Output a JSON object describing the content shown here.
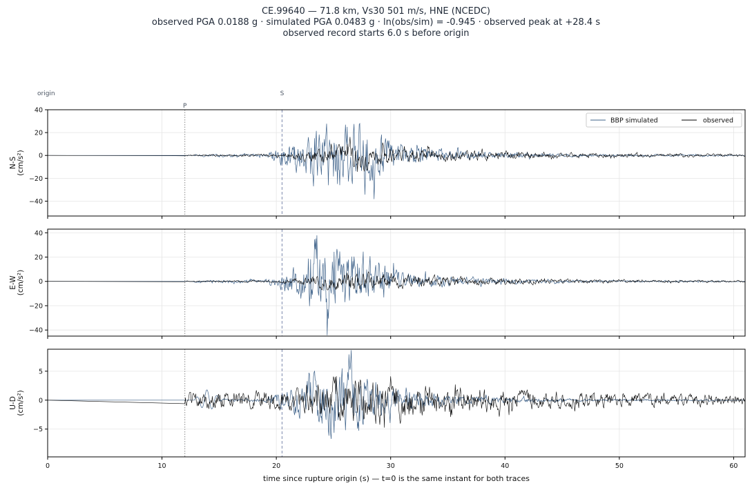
{
  "header": {
    "title_line1": "CE.99640  —  71.8 km, Vs30 501 m/s, HNE (NCEDC)",
    "title_line2": "observed PGA 0.0188 g   ·   simulated PGA 0.0483 g   ·   ln(obs/sim) = -0.945   ·   observed peak at +28.4 s",
    "title_line3": "observed record starts 6.0 s before origin"
  },
  "colors": {
    "simulated": "#3d6189",
    "observed": "#000000",
    "p_marker": "#888888",
    "s_marker": "#7b87ad",
    "grid": "#e5e5e5",
    "annotation_text": "#4b5563"
  },
  "chart_data": {
    "type": "line",
    "xlabel": "time since rupture origin (s)   —   t=0 is the same instant for both traces",
    "xlim": [
      0,
      61
    ],
    "xticks": [
      0,
      10,
      20,
      30,
      40,
      50,
      60
    ],
    "xtick_labels": [
      "0",
      "10",
      "20",
      "30",
      "40",
      "50",
      "60"
    ],
    "grid": true,
    "legend": {
      "placement": "upper-right",
      "entries": [
        "BBP simulated",
        "observed"
      ]
    },
    "markers": [
      {
        "label": "P",
        "t": 12.0,
        "style": "dotted"
      },
      {
        "label": "S",
        "t": 20.5,
        "style": "dashed"
      }
    ],
    "origin_label": "origin",
    "panels": [
      {
        "ylabel": "N-S\n(cm/s²)",
        "ylabel_component": "N-S",
        "ylabel_unit": "(cm/s²)",
        "ylim": [
          -53,
          40
        ],
        "yticks": [
          40,
          20,
          0,
          -20,
          -40
        ],
        "ytick_labels": [
          "40",
          "20",
          "0",
          "−20",
          "−40"
        ],
        "series": [
          {
            "name": "BBP simulated",
            "envelope_peak_t": 24.5,
            "peak_abs": 48,
            "onset_t": 12.8,
            "coda_end_t": 59.5
          },
          {
            "name": "observed",
            "envelope_peak_t": 27.5,
            "peak_abs": 18,
            "onset_t": 12.0,
            "coda_end_t": 61
          }
        ]
      },
      {
        "ylabel": "E-W\n(cm/s²)",
        "ylabel_component": "E-W",
        "ylabel_unit": "(cm/s²)",
        "ylim": [
          -45,
          43
        ],
        "yticks": [
          40,
          20,
          0,
          -20,
          -40
        ],
        "ytick_labels": [
          "40",
          "20",
          "0",
          "−20",
          "−40"
        ],
        "series": [
          {
            "name": "BBP simulated",
            "envelope_peak_t": 24.5,
            "peak_abs": 41,
            "onset_t": 12.8,
            "coda_end_t": 59.5
          },
          {
            "name": "observed",
            "envelope_peak_t": 27.0,
            "peak_abs": 14,
            "onset_t": 12.0,
            "coda_end_t": 61
          }
        ]
      },
      {
        "ylabel": "U-D\n(cm/s²)",
        "ylabel_component": "U-D",
        "ylabel_unit": "(cm/s²)",
        "ylim": [
          -9.8,
          8.8
        ],
        "yticks": [
          5,
          0,
          -5
        ],
        "ytick_labels": [
          "5",
          "0",
          "−5"
        ],
        "series": [
          {
            "name": "BBP simulated",
            "envelope_peak_t": 24.5,
            "peak_abs": 8.8,
            "onset_t": 12.8,
            "coda_end_t": 59.5
          },
          {
            "name": "observed",
            "envelope_peak_t": 28.4,
            "peak_abs": 7.5,
            "onset_t": 12.0,
            "coda_end_t": 61
          }
        ]
      }
    ]
  }
}
